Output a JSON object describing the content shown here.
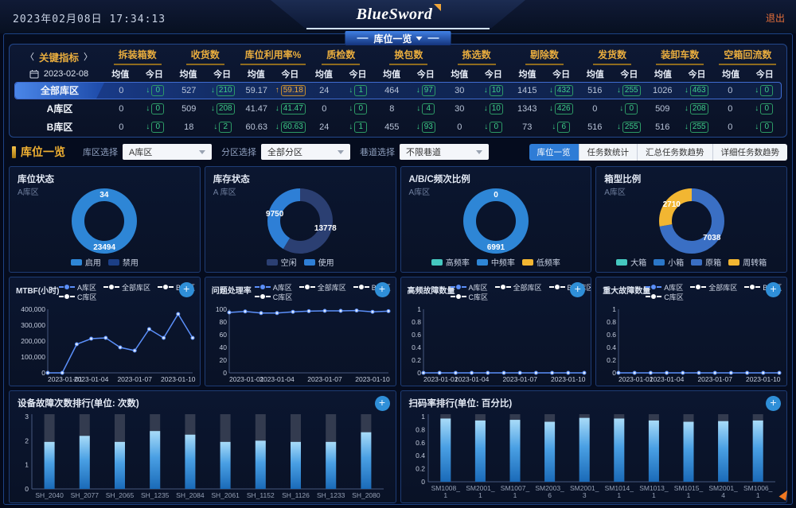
{
  "header": {
    "datetime": "2023年02月08日 17:34:13",
    "logo": "BlueSword",
    "logout": "退出",
    "nav_tab": "库位一览"
  },
  "indicators": {
    "nav_label": "关键指标",
    "prev_arrow": "〈",
    "next_arrow": "〉",
    "date": "2023-02-08",
    "avg_label": "均值",
    "today_label": "今日",
    "columns": [
      "拆装箱数",
      "收货数",
      "库位利用率%",
      "质检数",
      "换包数",
      "拣选数",
      "剔除数",
      "发货数",
      "装卸车数",
      "空箱回流数"
    ],
    "rows": [
      {
        "name": "全部库区",
        "highlight": true,
        "cells": [
          [
            "0",
            "0",
            "down"
          ],
          [
            "527",
            "210",
            "down"
          ],
          [
            "59.17",
            "59.18",
            "up"
          ],
          [
            "24",
            "1",
            "down"
          ],
          [
            "464",
            "97",
            "down"
          ],
          [
            "30",
            "10",
            "down"
          ],
          [
            "1415",
            "432",
            "down"
          ],
          [
            "516",
            "255",
            "down"
          ],
          [
            "1026",
            "463",
            "down"
          ],
          [
            "0",
            "0",
            "down"
          ]
        ]
      },
      {
        "name": "A库区",
        "highlight": false,
        "cells": [
          [
            "0",
            "0",
            "down"
          ],
          [
            "509",
            "208",
            "down"
          ],
          [
            "41.47",
            "41.47",
            "down"
          ],
          [
            "0",
            "0",
            "down"
          ],
          [
            "8",
            "4",
            "down"
          ],
          [
            "30",
            "10",
            "down"
          ],
          [
            "1343",
            "426",
            "down"
          ],
          [
            "0",
            "0",
            "down"
          ],
          [
            "509",
            "208",
            "down"
          ],
          [
            "0",
            "0",
            "down"
          ]
        ]
      },
      {
        "name": "B库区",
        "highlight": false,
        "cells": [
          [
            "0",
            "0",
            "down"
          ],
          [
            "18",
            "2",
            "down"
          ],
          [
            "60.63",
            "60.63",
            "down"
          ],
          [
            "24",
            "1",
            "down"
          ],
          [
            "455",
            "93",
            "down"
          ],
          [
            "0",
            "0",
            "down"
          ],
          [
            "73",
            "6",
            "down"
          ],
          [
            "516",
            "255",
            "down"
          ],
          [
            "516",
            "255",
            "down"
          ],
          [
            "0",
            "0",
            "down"
          ]
        ]
      }
    ]
  },
  "filters": {
    "section_title": "库位一览",
    "selects": [
      {
        "label": "库区选择",
        "value": "A库区"
      },
      {
        "label": "分区选择",
        "value": "全部分区"
      },
      {
        "label": "巷道选择",
        "value": "不限巷道"
      }
    ],
    "view_buttons": [
      {
        "label": "库位一览",
        "active": true
      },
      {
        "label": "任务数统计",
        "active": false
      },
      {
        "label": "汇总任务数趋势",
        "active": false
      },
      {
        "label": "详细任务数趋势",
        "active": false
      }
    ]
  },
  "chart_data": [
    {
      "id": "donut-location-status",
      "type": "pie",
      "title": "库位状态",
      "subtitle": "A库区",
      "slices": [
        {
          "label": "启用",
          "value": 23494,
          "color": "#2e86d6"
        },
        {
          "label": "禁用",
          "value": 34,
          "color": "#1c3f86"
        }
      ]
    },
    {
      "id": "donut-stock-status",
      "type": "pie",
      "title": "库存状态",
      "subtitle": "A 库区",
      "slices": [
        {
          "label": "空闲",
          "value": 13778,
          "color": "#2b3f72"
        },
        {
          "label": "使用",
          "value": 9750,
          "color": "#2e7fd6"
        }
      ]
    },
    {
      "id": "donut-frequency-ratio",
      "type": "pie",
      "title": "A/B/C频次比例",
      "subtitle": "A库区",
      "slices": [
        {
          "label": "高频率",
          "value": 0,
          "color": "#45c8c0"
        },
        {
          "label": "中频率",
          "value": 6991,
          "color": "#2e86d6"
        },
        {
          "label": "低频率",
          "value": 0,
          "color": "#f2b632"
        }
      ]
    },
    {
      "id": "donut-box-type-ratio",
      "type": "pie",
      "title": "箱型比例",
      "subtitle": "A库区",
      "slices": [
        {
          "label": "大箱",
          "value": 0,
          "color": "#45c8c0"
        },
        {
          "label": "小箱",
          "value": 0,
          "color": "#2b77c8"
        },
        {
          "label": "原箱",
          "value": 7038,
          "color": "#3a6fc4"
        },
        {
          "label": "周转箱",
          "value": 2710,
          "color": "#f2b632"
        }
      ]
    },
    {
      "id": "line-mtbf",
      "type": "line",
      "title": "MTBF(小时)",
      "gutter": 46,
      "yfmt": "comma",
      "legend": [
        {
          "label": "A库区",
          "color": "#5b8ff9"
        },
        {
          "label": "全部库区",
          "color": "#ffffff"
        },
        {
          "label": "B库区",
          "color": "#ffffff"
        },
        {
          "label": "C库区",
          "color": "#ffffff"
        }
      ],
      "x": [
        "2023-01-01",
        "2023-01-02",
        "2023-01-03",
        "2023-01-04",
        "2023-01-05",
        "2023-01-06",
        "2023-01-07",
        "2023-01-08",
        "2023-01-09",
        "2023-01-10",
        "2023-01-11"
      ],
      "xticks": [
        "2023-01-01",
        "2023-01-04",
        "2023-01-07",
        "2023-01-10"
      ],
      "ylim": [
        0,
        400000
      ],
      "yticks": [
        0,
        100000,
        200000,
        300000,
        400000
      ],
      "series": [
        {
          "name": "A库区",
          "color": "#5b8ff9",
          "values": [
            0,
            0,
            180000,
            215000,
            220000,
            160000,
            140000,
            275000,
            220000,
            370000,
            220000
          ]
        }
      ]
    },
    {
      "id": "line-issue-rate",
      "type": "line",
      "title": "问题处理率",
      "gutter": 28,
      "legend": [
        {
          "label": "A库区",
          "color": "#5b8ff9"
        },
        {
          "label": "全部库区",
          "color": "#ffffff"
        },
        {
          "label": "B库区",
          "color": "#ffffff"
        },
        {
          "label": "C库区",
          "color": "#ffffff"
        }
      ],
      "x": [
        "2023-01-01",
        "2023-01-02",
        "2023-01-03",
        "2023-01-04",
        "2023-01-05",
        "2023-01-06",
        "2023-01-07",
        "2023-01-08",
        "2023-01-09",
        "2023-01-10",
        "2023-01-11"
      ],
      "xticks": [
        "2023-01-01",
        "2023-01-04",
        "2023-01-07",
        "2023-01-10"
      ],
      "ylim": [
        0,
        100
      ],
      "yticks": [
        0,
        20,
        40,
        60,
        80,
        100
      ],
      "series": [
        {
          "name": "A库区",
          "color": "#5b8ff9",
          "values": [
            95,
            96.5,
            94,
            94,
            96,
            97,
            97.5,
            97.5,
            98,
            96,
            97
          ]
        }
      ]
    },
    {
      "id": "line-highfreq-fault",
      "type": "line",
      "title": "高频故障数量",
      "gutter": 26,
      "legend": [
        {
          "label": "A库区",
          "color": "#5b8ff9"
        },
        {
          "label": "全部库区",
          "color": "#ffffff"
        },
        {
          "label": "B号库区",
          "color": "#ffffff"
        },
        {
          "label": "C库区",
          "color": "#ffffff"
        }
      ],
      "x": [
        "2023-01-01",
        "2023-01-02",
        "2023-01-03",
        "2023-01-04",
        "2023-01-05",
        "2023-01-06",
        "2023-01-07",
        "2023-01-08",
        "2023-01-09",
        "2023-01-10",
        "2023-01-11"
      ],
      "xticks": [
        "2023-01-01",
        "2023-01-04",
        "2023-01-07",
        "2023-01-10"
      ],
      "ylim": [
        0,
        1
      ],
      "yticks": [
        0,
        0.2,
        0.4,
        0.6,
        0.8,
        1
      ],
      "series": [
        {
          "name": "A库区",
          "color": "#5b8ff9",
          "values": [
            0,
            0,
            0,
            0,
            0,
            0,
            0,
            0,
            0,
            0,
            0
          ]
        }
      ]
    },
    {
      "id": "line-major-fault",
      "type": "line",
      "title": "重大故障数量",
      "gutter": 26,
      "legend": [
        {
          "label": "A库区",
          "color": "#5b8ff9"
        },
        {
          "label": "全部库区",
          "color": "#ffffff"
        },
        {
          "label": "B库区",
          "color": "#ffffff"
        },
        {
          "label": "C库区",
          "color": "#ffffff"
        }
      ],
      "x": [
        "2023-01-01",
        "2023-01-02",
        "2023-01-03",
        "2023-01-04",
        "2023-01-05",
        "2023-01-06",
        "2023-01-07",
        "2023-01-08",
        "2023-01-09",
        "2023-01-10",
        "2023-01-11"
      ],
      "xticks": [
        "2023-01-01",
        "2023-01-04",
        "2023-01-07",
        "2023-01-10"
      ],
      "ylim": [
        0,
        1
      ],
      "yticks": [
        0,
        0.2,
        0.4,
        0.6,
        0.8,
        1
      ],
      "series": [
        {
          "name": "A库区",
          "color": "#5b8ff9",
          "values": [
            0,
            0,
            0,
            0,
            0,
            0,
            0,
            0,
            0,
            0,
            0
          ]
        }
      ]
    },
    {
      "id": "bar-device-fault",
      "type": "bar",
      "title": "设备故障次数排行(单位: 次数)",
      "categories": [
        "SH_2040",
        "SH_2077",
        "SH_2065",
        "SH_1235",
        "SH_2084",
        "SH_2061",
        "SH_1152",
        "SH_1126",
        "SH_1233",
        "SH_2080"
      ],
      "values": [
        1.95,
        2.2,
        1.95,
        2.4,
        2.25,
        1.95,
        2.0,
        1.95,
        1.95,
        2.35
      ],
      "ylim": [
        0,
        3
      ],
      "yticks": [
        0,
        1,
        2,
        3
      ]
    },
    {
      "id": "bar-scan-rate",
      "type": "bar",
      "title": "扫码率排行(单位: 百分比)",
      "categories": [
        "SM1008_\n1",
        "SM2001_\n1",
        "SM1007_\n1",
        "SM2003_\n6",
        "SM2001_\n3",
        "SM1014_\n1",
        "SM1013_\n1",
        "SM1015_\n1",
        "SM2001_\n4",
        "SM1006_\n1"
      ],
      "values": [
        0.97,
        0.94,
        0.95,
        0.92,
        0.98,
        0.97,
        0.94,
        0.92,
        0.93,
        0.94
      ],
      "ylim": [
        0,
        1
      ],
      "yticks": [
        0,
        0.2,
        0.4,
        0.6,
        0.8,
        1
      ]
    }
  ]
}
